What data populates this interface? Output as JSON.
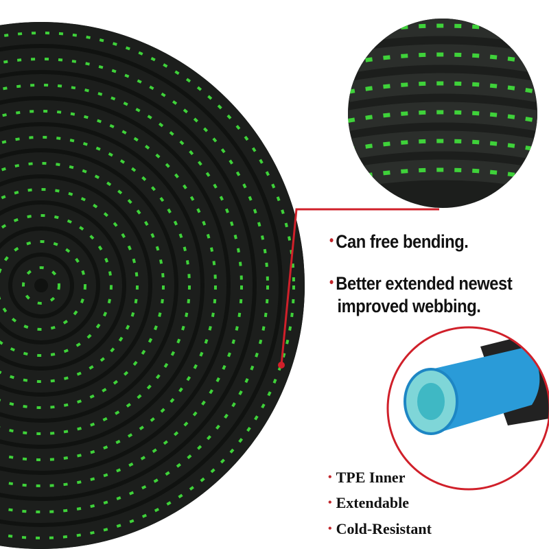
{
  "features": [
    {
      "text": "Can free bending."
    },
    {
      "text": "Better extended newest improved webbing.",
      "lines": [
        "Better extended newest",
        "improved webbing."
      ]
    }
  ],
  "specs": [
    "TPE Inner",
    "Extendable",
    "Cold-Resistant"
  ],
  "colors": {
    "hose_black": "#1c1e1c",
    "hose_green": "#3fd23a",
    "accent_red": "#d0202a",
    "tube_blue": "#2a9bd8",
    "tube_inner": "#7fd6d8"
  }
}
